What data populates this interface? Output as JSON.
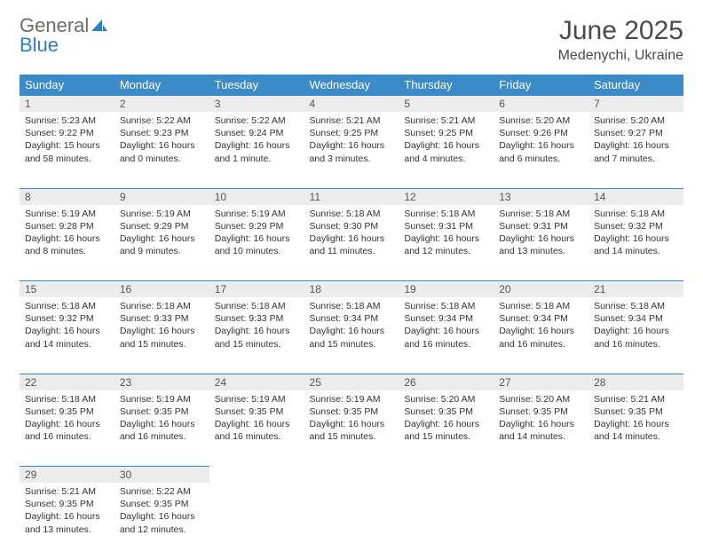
{
  "brand": {
    "part1": "General",
    "part2": "Blue"
  },
  "title": "June 2025",
  "location": "Medenychi, Ukraine",
  "colors": {
    "header_bg": "#3b8bc9",
    "header_text": "#ffffff",
    "daynum_bg": "#ececec",
    "row_border": "#3b8bc9",
    "body_text": "#333333",
    "title_text": "#4a4a4a",
    "logo_gray": "#6b6b6b",
    "logo_blue": "#2f7fbf"
  },
  "weekdays": [
    "Sunday",
    "Monday",
    "Tuesday",
    "Wednesday",
    "Thursday",
    "Friday",
    "Saturday"
  ],
  "weeks": [
    [
      {
        "n": "1",
        "sr": "5:23 AM",
        "ss": "9:22 PM",
        "dl": "15 hours and 58 minutes."
      },
      {
        "n": "2",
        "sr": "5:22 AM",
        "ss": "9:23 PM",
        "dl": "16 hours and 0 minutes."
      },
      {
        "n": "3",
        "sr": "5:22 AM",
        "ss": "9:24 PM",
        "dl": "16 hours and 1 minute."
      },
      {
        "n": "4",
        "sr": "5:21 AM",
        "ss": "9:25 PM",
        "dl": "16 hours and 3 minutes."
      },
      {
        "n": "5",
        "sr": "5:21 AM",
        "ss": "9:25 PM",
        "dl": "16 hours and 4 minutes."
      },
      {
        "n": "6",
        "sr": "5:20 AM",
        "ss": "9:26 PM",
        "dl": "16 hours and 6 minutes."
      },
      {
        "n": "7",
        "sr": "5:20 AM",
        "ss": "9:27 PM",
        "dl": "16 hours and 7 minutes."
      }
    ],
    [
      {
        "n": "8",
        "sr": "5:19 AM",
        "ss": "9:28 PM",
        "dl": "16 hours and 8 minutes."
      },
      {
        "n": "9",
        "sr": "5:19 AM",
        "ss": "9:29 PM",
        "dl": "16 hours and 9 minutes."
      },
      {
        "n": "10",
        "sr": "5:19 AM",
        "ss": "9:29 PM",
        "dl": "16 hours and 10 minutes."
      },
      {
        "n": "11",
        "sr": "5:18 AM",
        "ss": "9:30 PM",
        "dl": "16 hours and 11 minutes."
      },
      {
        "n": "12",
        "sr": "5:18 AM",
        "ss": "9:31 PM",
        "dl": "16 hours and 12 minutes."
      },
      {
        "n": "13",
        "sr": "5:18 AM",
        "ss": "9:31 PM",
        "dl": "16 hours and 13 minutes."
      },
      {
        "n": "14",
        "sr": "5:18 AM",
        "ss": "9:32 PM",
        "dl": "16 hours and 14 minutes."
      }
    ],
    [
      {
        "n": "15",
        "sr": "5:18 AM",
        "ss": "9:32 PM",
        "dl": "16 hours and 14 minutes."
      },
      {
        "n": "16",
        "sr": "5:18 AM",
        "ss": "9:33 PM",
        "dl": "16 hours and 15 minutes."
      },
      {
        "n": "17",
        "sr": "5:18 AM",
        "ss": "9:33 PM",
        "dl": "16 hours and 15 minutes."
      },
      {
        "n": "18",
        "sr": "5:18 AM",
        "ss": "9:34 PM",
        "dl": "16 hours and 15 minutes."
      },
      {
        "n": "19",
        "sr": "5:18 AM",
        "ss": "9:34 PM",
        "dl": "16 hours and 16 minutes."
      },
      {
        "n": "20",
        "sr": "5:18 AM",
        "ss": "9:34 PM",
        "dl": "16 hours and 16 minutes."
      },
      {
        "n": "21",
        "sr": "5:18 AM",
        "ss": "9:34 PM",
        "dl": "16 hours and 16 minutes."
      }
    ],
    [
      {
        "n": "22",
        "sr": "5:18 AM",
        "ss": "9:35 PM",
        "dl": "16 hours and 16 minutes."
      },
      {
        "n": "23",
        "sr": "5:19 AM",
        "ss": "9:35 PM",
        "dl": "16 hours and 16 minutes."
      },
      {
        "n": "24",
        "sr": "5:19 AM",
        "ss": "9:35 PM",
        "dl": "16 hours and 16 minutes."
      },
      {
        "n": "25",
        "sr": "5:19 AM",
        "ss": "9:35 PM",
        "dl": "16 hours and 15 minutes."
      },
      {
        "n": "26",
        "sr": "5:20 AM",
        "ss": "9:35 PM",
        "dl": "16 hours and 15 minutes."
      },
      {
        "n": "27",
        "sr": "5:20 AM",
        "ss": "9:35 PM",
        "dl": "16 hours and 14 minutes."
      },
      {
        "n": "28",
        "sr": "5:21 AM",
        "ss": "9:35 PM",
        "dl": "16 hours and 14 minutes."
      }
    ],
    [
      {
        "n": "29",
        "sr": "5:21 AM",
        "ss": "9:35 PM",
        "dl": "16 hours and 13 minutes."
      },
      {
        "n": "30",
        "sr": "5:22 AM",
        "ss": "9:35 PM",
        "dl": "16 hours and 12 minutes."
      },
      null,
      null,
      null,
      null,
      null
    ]
  ],
  "labels": {
    "sunrise": "Sunrise: ",
    "sunset": "Sunset: ",
    "daylight": "Daylight: "
  }
}
